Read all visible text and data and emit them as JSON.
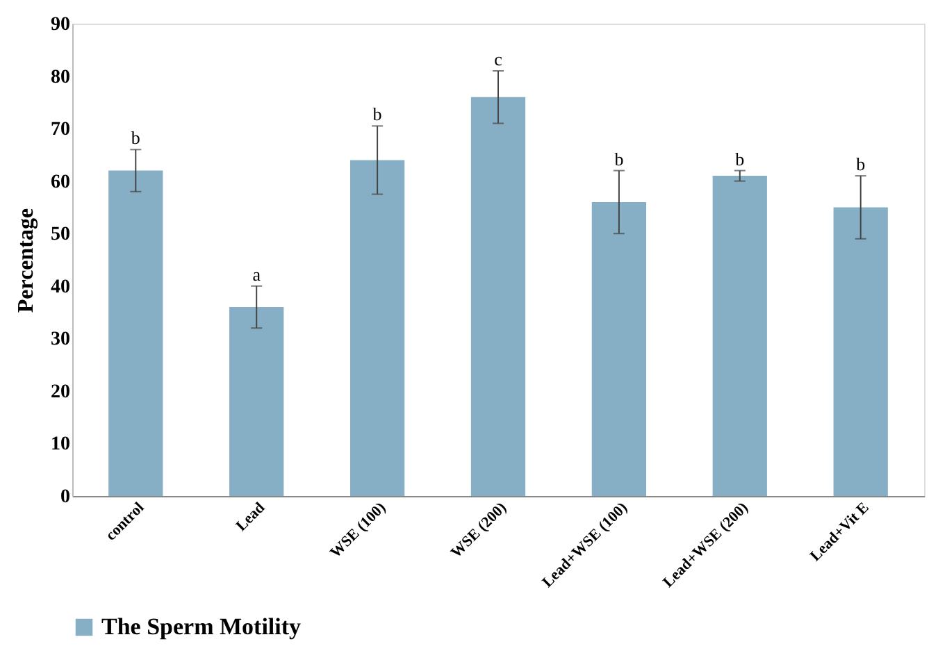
{
  "chart_data": {
    "type": "bar",
    "ylabel": "Percentage",
    "categories": [
      "control",
      "Lead",
      "WSE (100)",
      "WSE (200)",
      "Lead+WSE (100)",
      "Lead+WSE (200)",
      "Lead+Vit E"
    ],
    "series": [
      {
        "name": "The Sperm Motility",
        "color": "#86aec4",
        "values": [
          62,
          36,
          64,
          76,
          56,
          61,
          55
        ],
        "errors": [
          4,
          4,
          6.5,
          5,
          6,
          1,
          6
        ]
      }
    ],
    "ylim": [
      0,
      90
    ],
    "yticks": [
      0,
      10,
      20,
      30,
      40,
      50,
      60,
      70,
      80,
      90
    ],
    "grid": false,
    "legend": "bottom",
    "annotations": [
      {
        "text": "b",
        "x": "control",
        "y": 66
      },
      {
        "text": "a",
        "x": "Lead",
        "y": 40
      },
      {
        "text": "b",
        "x": "WSE (100)",
        "y": 70.5
      },
      {
        "text": "c",
        "x": "WSE (200)",
        "y": 81
      },
      {
        "text": "b",
        "x": "Lead+WSE (100)",
        "y": 62
      },
      {
        "text": "b",
        "x": "Lead+WSE (200)",
        "y": 62
      },
      {
        "text": "b",
        "x": "Lead+Vit E",
        "y": 61
      }
    ]
  }
}
